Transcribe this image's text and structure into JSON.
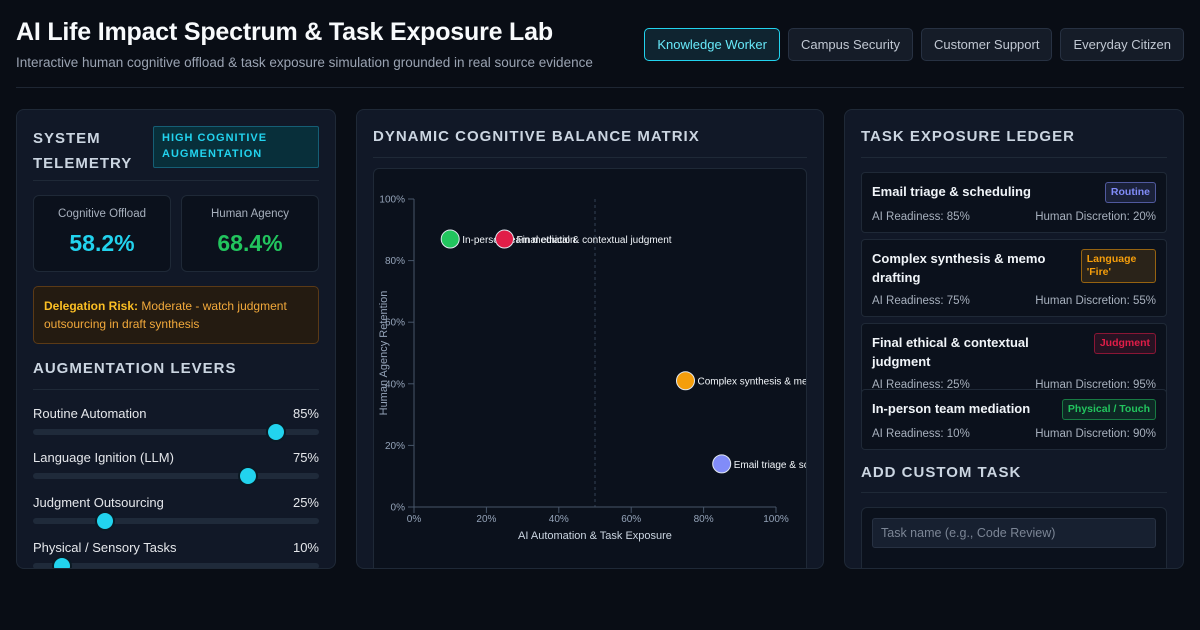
{
  "header": {
    "title": "AI Life Impact Spectrum & Task Exposure Lab",
    "subtitle": "Interactive human cognitive offload & task exposure simulation grounded in real source evidence",
    "personas": [
      "Knowledge Worker",
      "Campus Security",
      "Customer Support",
      "Everyday Citizen"
    ],
    "active_persona": "Knowledge Worker"
  },
  "telemetry": {
    "title": "System Telemetry",
    "badge": "HIGH COGNITIVE AUGMENTATION",
    "offload_label": "Cognitive Offload",
    "offload_value": "58.2%",
    "agency_label": "Human Agency",
    "agency_value": "68.4%",
    "risk_label": "Delegation Risk:",
    "risk_text": "Moderate - watch judgment outsourcing in draft synthesis",
    "colors": {
      "offload": "#22d3ee",
      "agency": "#22c55e"
    }
  },
  "levers": {
    "title": "Augmentation Levers",
    "items": [
      {
        "label": "Routine Automation",
        "value": "85%",
        "level": 0.85
      },
      {
        "label": "Language Ignition (LLM)",
        "value": "75%",
        "level": 0.75
      },
      {
        "label": "Judgment Outsourcing",
        "value": "25%",
        "level": 0.25
      },
      {
        "label": "Physical / Sensory Tasks",
        "value": "10%",
        "level": 0.1
      }
    ]
  },
  "matrix": {
    "title": "Dynamic Cognitive Balance Matrix"
  },
  "chart_data": {
    "type": "scatter",
    "xlabel": "AI Automation & Task Exposure",
    "ylabel": "Human Agency Retention",
    "xlim": [
      0,
      100
    ],
    "ylim": [
      0,
      100
    ],
    "x_ticks": [
      "0%",
      "20%",
      "40%",
      "60%",
      "80%",
      "100%"
    ],
    "y_ticks": [
      "0%",
      "20%",
      "40%",
      "60%",
      "80%",
      "100%"
    ],
    "points": [
      {
        "label": "In-person team mediation",
        "x": 10,
        "y": 87,
        "color": "#22c55e"
      },
      {
        "label": "Final ethical & contextual judgment",
        "x": 25,
        "y": 87,
        "color": "#e11d48"
      },
      {
        "label": "Complex synthesis & memo drafting",
        "x": 75,
        "y": 41,
        "color": "#f59e0b"
      },
      {
        "label": "Email triage & scheduling",
        "x": 85,
        "y": 14,
        "color": "#818cf8"
      }
    ]
  },
  "ledger": {
    "title": "Task Exposure Ledger",
    "tasks": [
      {
        "name": "Email triage & scheduling",
        "tag": "Routine",
        "ai": "AI Readiness: 85%",
        "human": "Human Discretion: 20%",
        "tag_color": "#818cf8"
      },
      {
        "name": "Complex synthesis & memo drafting",
        "tag": "Language 'Fire'",
        "ai": "AI Readiness: 75%",
        "human": "Human Discretion: 55%",
        "tag_color": "#f59e0b"
      },
      {
        "name": "Final ethical & contextual judgment",
        "tag": "Judgment",
        "ai": "AI Readiness: 25%",
        "human": "Human Discretion: 95%",
        "tag_color": "#e11d48"
      },
      {
        "name": "In-person team mediation",
        "tag": "Physical / Touch",
        "ai": "AI Readiness: 10%",
        "human": "Human Discretion: 90%",
        "tag_color": "#22c55e"
      }
    ]
  },
  "custom": {
    "title": "Add Custom Task",
    "name_placeholder": "Task name (e.g., Code Review)"
  }
}
